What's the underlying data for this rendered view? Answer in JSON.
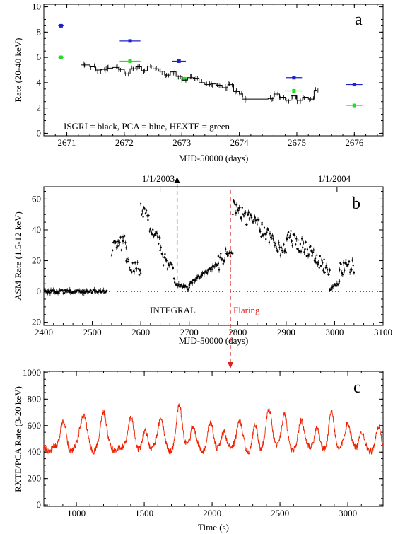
{
  "chart_data": [
    {
      "type": "scatter",
      "panel_label": "a",
      "xlabel": "MJD-50000 (days)",
      "ylabel": "Rate (20-40 keV)",
      "xlim": [
        2670.6,
        2676.5
      ],
      "ylim": [
        -0.2,
        10.2
      ],
      "xticks": [
        2671,
        2672,
        2673,
        2674,
        2675,
        2676
      ],
      "yticks": [
        0,
        2,
        4,
        6,
        8,
        10
      ],
      "annotation": "ISGRI = black, PCA = blue, HEXTE = green",
      "colors": {
        "isgri": "#000000",
        "pca": "#2020cc",
        "hexte": "#22dd22"
      },
      "series": [
        {
          "key": "pca",
          "color": "#2020cc",
          "points": [
            [
              2670.9,
              8.5,
              0.05,
              0.15
            ],
            [
              2672.1,
              7.3,
              0.18,
              0.1
            ],
            [
              2672.95,
              5.7,
              0.12,
              0.1
            ],
            [
              2674.95,
              4.4,
              0.14,
              0.1
            ],
            [
              2676.0,
              3.85,
              0.14,
              0.1
            ]
          ]
        },
        {
          "key": "hexte",
          "color": "#22dd22",
          "points": [
            [
              2670.9,
              6.0,
              0.05,
              0.2
            ],
            [
              2672.1,
              5.7,
              0.18,
              0.15
            ],
            [
              2673.05,
              4.3,
              0.15,
              0.15
            ],
            [
              2674.95,
              3.35,
              0.16,
              0.15
            ],
            [
              2676.0,
              2.2,
              0.14,
              0.1
            ]
          ]
        },
        {
          "key": "isgri",
          "color": "#000000",
          "step": [
            [
              2671.25,
              5.4
            ],
            [
              2671.4,
              5.25
            ],
            [
              2671.5,
              5.0
            ],
            [
              2671.6,
              5.05
            ],
            [
              2671.7,
              5.15
            ],
            [
              2671.8,
              5.2
            ],
            [
              2671.9,
              5.05
            ],
            [
              2672.0,
              4.7
            ],
            [
              2672.1,
              5.1
            ],
            [
              2672.2,
              5.25
            ],
            [
              2672.3,
              4.95
            ],
            [
              2672.4,
              5.3
            ],
            [
              2672.5,
              5.1
            ],
            [
              2672.6,
              4.9
            ],
            [
              2672.7,
              4.6
            ],
            [
              2672.8,
              4.85
            ],
            [
              2672.9,
              4.5
            ],
            [
              2673.0,
              4.2
            ],
            [
              2673.1,
              4.4
            ],
            [
              2673.2,
              4.35
            ],
            [
              2673.3,
              4.0
            ],
            [
              2673.4,
              3.85
            ],
            [
              2673.5,
              3.9
            ],
            [
              2673.6,
              3.8
            ],
            [
              2673.7,
              3.6
            ],
            [
              2673.8,
              3.85
            ],
            [
              2673.9,
              3.3
            ],
            [
              2674.0,
              3.1
            ],
            [
              2674.05,
              2.7
            ],
            [
              2674.5,
              2.75
            ],
            [
              2674.6,
              3.1
            ],
            [
              2674.7,
              2.85
            ],
            [
              2674.8,
              2.6
            ],
            [
              2674.9,
              2.95
            ],
            [
              2675.0,
              2.6
            ],
            [
              2675.1,
              2.85
            ],
            [
              2675.2,
              2.7
            ],
            [
              2675.3,
              3.4
            ]
          ]
        }
      ]
    },
    {
      "type": "scatter",
      "panel_label": "b",
      "xlabel": "MJD-50000 (days)",
      "ylabel": "ASM Rate (1.5-12 keV)",
      "xlim": [
        2400,
        3100
      ],
      "ylim": [
        -22,
        68
      ],
      "xticks": [
        2400,
        2500,
        2600,
        2700,
        2800,
        2900,
        3000,
        3100
      ],
      "yticks": [
        -20,
        0,
        20,
        40,
        60
      ],
      "top_tick_labels": [
        {
          "x": 2640,
          "label": "1/1/2003"
        },
        {
          "x": 3005,
          "label": "1/1/2004"
        }
      ],
      "vlines": [
        {
          "x": 2675,
          "label": "INTEGRAL",
          "color": "#000000"
        },
        {
          "x": 2785,
          "label": "Flaring",
          "color": "#dd2222"
        }
      ],
      "segments": [
        [
          2400,
          2530,
          0,
          0
        ],
        [
          2540,
          2570,
          28,
          33
        ],
        [
          2570,
          2600,
          18,
          15
        ],
        [
          2600,
          2640,
          55,
          30
        ],
        [
          2640,
          2670,
          25,
          10
        ],
        [
          2670,
          2700,
          5,
          2
        ],
        [
          2700,
          2760,
          5,
          18
        ],
        [
          2760,
          2790,
          18,
          28
        ],
        [
          2790,
          2850,
          55,
          40
        ],
        [
          2850,
          2900,
          40,
          25
        ],
        [
          2900,
          2960,
          38,
          22
        ],
        [
          2960,
          2990,
          20,
          15
        ],
        [
          2990,
          3010,
          2,
          6
        ],
        [
          3010,
          3040,
          15,
          17
        ]
      ]
    },
    {
      "type": "line",
      "panel_label": "c",
      "xlabel": "Time (s)",
      "ylabel": "RXTE/PCA Rate (3-20 keV)",
      "xlim": [
        760,
        3260
      ],
      "ylim": [
        -10,
        1010
      ],
      "xticks": [
        1000,
        1500,
        2000,
        2500,
        3000
      ],
      "yticks": [
        0,
        200,
        400,
        600,
        800,
        1000
      ],
      "color": "#ee2200",
      "baseline": 420,
      "flares": [
        [
          900,
          640,
          30
        ],
        [
          1050,
          690,
          35
        ],
        [
          1200,
          720,
          30
        ],
        [
          1400,
          640,
          35
        ],
        [
          1510,
          560,
          25
        ],
        [
          1620,
          660,
          30
        ],
        [
          1760,
          760,
          30
        ],
        [
          1860,
          620,
          25
        ],
        [
          1990,
          610,
          30
        ],
        [
          2090,
          560,
          25
        ],
        [
          2200,
          640,
          30
        ],
        [
          2320,
          600,
          25
        ],
        [
          2420,
          740,
          30
        ],
        [
          2530,
          680,
          30
        ],
        [
          2660,
          640,
          30
        ],
        [
          2770,
          600,
          25
        ],
        [
          2880,
          690,
          30
        ],
        [
          3000,
          630,
          30
        ],
        [
          3100,
          560,
          25
        ],
        [
          3230,
          600,
          25
        ]
      ]
    }
  ]
}
